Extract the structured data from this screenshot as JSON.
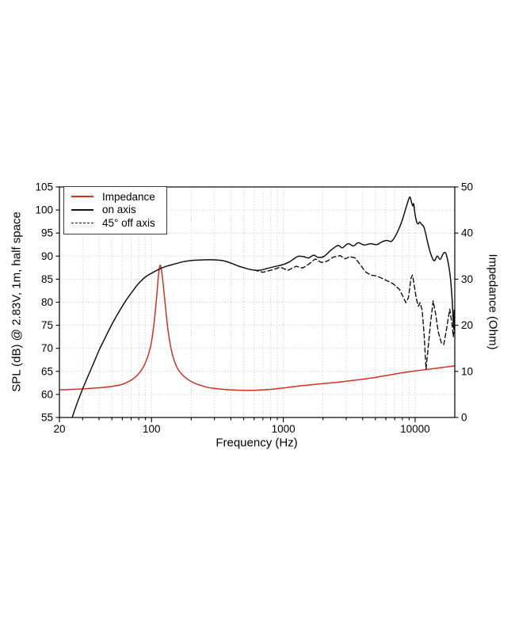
{
  "page": {
    "background": "#ffffff"
  },
  "chart_data": {
    "type": "line",
    "title": "",
    "xlabel": "Frequency (Hz)",
    "ylabel_left": "SPL (dB) @ 2.83V, 1m, half space",
    "ylabel_right": "Impedance (Ohm)",
    "x_scale": "log",
    "xlim": [
      20,
      20000
    ],
    "x_major_ticks": [
      20,
      100,
      1000,
      10000
    ],
    "x_major_labels": [
      "20",
      "100",
      "1000",
      "10000"
    ],
    "ylim_left": [
      55,
      105
    ],
    "y_left_ticks": [
      55,
      60,
      65,
      70,
      75,
      80,
      85,
      90,
      95,
      100,
      105
    ],
    "ylim_right": [
      0,
      50
    ],
    "y_right_ticks": [
      0,
      10,
      20,
      30,
      40,
      50
    ],
    "grid": true,
    "grid_color": "#c4c4c4",
    "frame_color": "#000000",
    "legend_position": "upper-left",
    "series": [
      {
        "name": "Impedance",
        "axis": "right",
        "unit": "Ohm",
        "color": "#d62f22",
        "style": "solid",
        "smooth": true,
        "points": [
          [
            20,
            6.0
          ],
          [
            25,
            6.1
          ],
          [
            32,
            6.25
          ],
          [
            40,
            6.45
          ],
          [
            50,
            6.75
          ],
          [
            60,
            7.2
          ],
          [
            70,
            8.1
          ],
          [
            80,
            9.5
          ],
          [
            88,
            11.3
          ],
          [
            95,
            13.8
          ],
          [
            100,
            16.5
          ],
          [
            105,
            21.0
          ],
          [
            110,
            27.0
          ],
          [
            113,
            31.0
          ],
          [
            116,
            33.0
          ],
          [
            119,
            32.0
          ],
          [
            123,
            28.5
          ],
          [
            128,
            23.5
          ],
          [
            134,
            18.5
          ],
          [
            141,
            14.8
          ],
          [
            150,
            12.0
          ],
          [
            160,
            10.3
          ],
          [
            175,
            9.0
          ],
          [
            190,
            8.2
          ],
          [
            210,
            7.5
          ],
          [
            240,
            6.9
          ],
          [
            270,
            6.5
          ],
          [
            300,
            6.3
          ],
          [
            350,
            6.1
          ],
          [
            400,
            6.0
          ],
          [
            500,
            5.9
          ],
          [
            600,
            5.9
          ],
          [
            700,
            6.0
          ],
          [
            800,
            6.1
          ],
          [
            1000,
            6.4
          ],
          [
            1200,
            6.7
          ],
          [
            1400,
            6.9
          ],
          [
            1700,
            7.15
          ],
          [
            2000,
            7.35
          ],
          [
            2500,
            7.6
          ],
          [
            3000,
            7.85
          ],
          [
            4000,
            8.3
          ],
          [
            5000,
            8.7
          ],
          [
            6300,
            9.2
          ],
          [
            8000,
            9.7
          ],
          [
            10000,
            10.1
          ],
          [
            13000,
            10.5
          ],
          [
            16000,
            10.85
          ],
          [
            20000,
            11.2
          ]
        ]
      },
      {
        "name": "on axis",
        "axis": "left",
        "unit": "dB SPL",
        "color": "#111111",
        "style": "solid",
        "smooth": true,
        "points": [
          [
            25,
            55.0
          ],
          [
            27,
            57.8
          ],
          [
            30,
            61.2
          ],
          [
            33,
            64.0
          ],
          [
            36.5,
            66.9
          ],
          [
            40,
            69.6
          ],
          [
            45,
            72.6
          ],
          [
            50,
            75.2
          ],
          [
            56,
            77.7
          ],
          [
            63,
            80.1
          ],
          [
            71,
            82.2
          ],
          [
            80,
            84.1
          ],
          [
            90,
            85.5
          ],
          [
            100,
            86.3
          ],
          [
            115,
            87.2
          ],
          [
            130,
            87.8
          ],
          [
            150,
            88.3
          ],
          [
            175,
            88.8
          ],
          [
            210,
            89.1
          ],
          [
            250,
            89.2
          ],
          [
            300,
            89.2
          ],
          [
            350,
            89.0
          ],
          [
            400,
            88.5
          ],
          [
            450,
            87.9
          ],
          [
            500,
            87.5
          ],
          [
            560,
            87.1
          ],
          [
            650,
            86.9
          ],
          [
            750,
            87.3
          ],
          [
            850,
            87.7
          ],
          [
            980,
            88.1
          ],
          [
            1120,
            88.8
          ],
          [
            1280,
            89.9
          ],
          [
            1420,
            89.9
          ],
          [
            1550,
            89.6
          ],
          [
            1700,
            90.2
          ],
          [
            1850,
            89.7
          ],
          [
            2050,
            90.0
          ],
          [
            2300,
            91.3
          ],
          [
            2600,
            92.3
          ],
          [
            2800,
            91.8
          ],
          [
            3100,
            92.7
          ],
          [
            3400,
            92.2
          ],
          [
            3700,
            92.9
          ],
          [
            4100,
            92.4
          ],
          [
            4600,
            92.7
          ],
          [
            5100,
            92.5
          ],
          [
            5600,
            93.1
          ],
          [
            6100,
            93.4
          ],
          [
            6600,
            93.2
          ],
          [
            7100,
            94.4
          ],
          [
            7900,
            97.4
          ],
          [
            8600,
            100.8
          ],
          [
            9100,
            102.8
          ],
          [
            9400,
            101.6
          ],
          [
            9600,
            100.9
          ],
          [
            9750,
            101.3
          ],
          [
            10000,
            99.0
          ],
          [
            10300,
            97.3
          ],
          [
            10600,
            97.0
          ],
          [
            10800,
            97.4
          ],
          [
            11200,
            96.9
          ],
          [
            11700,
            96.2
          ],
          [
            12400,
            93.2
          ],
          [
            13000,
            90.9
          ],
          [
            13900,
            89.0
          ],
          [
            14700,
            90.0
          ],
          [
            15500,
            89.3
          ],
          [
            16500,
            90.7
          ],
          [
            17300,
            90.2
          ],
          [
            18400,
            86.0
          ],
          [
            19100,
            80.5
          ],
          [
            19600,
            74.5
          ],
          [
            19800,
            78.3
          ],
          [
            20000,
            73.2
          ]
        ]
      },
      {
        "name": "45° off axis",
        "axis": "left",
        "unit": "dB SPL",
        "color": "#111111",
        "style": "dashed",
        "smooth": false,
        "points": [
          [
            600,
            87.0
          ],
          [
            700,
            86.5
          ],
          [
            820,
            87.0
          ],
          [
            950,
            87.6
          ],
          [
            1080,
            86.9
          ],
          [
            1250,
            87.8
          ],
          [
            1400,
            87.4
          ],
          [
            1550,
            88.2
          ],
          [
            1750,
            89.4
          ],
          [
            1950,
            88.6
          ],
          [
            2150,
            88.9
          ],
          [
            2400,
            89.8
          ],
          [
            2700,
            90.1
          ],
          [
            2950,
            89.4
          ],
          [
            3200,
            89.9
          ],
          [
            3500,
            89.6
          ],
          [
            3800,
            88.3
          ],
          [
            4200,
            86.6
          ],
          [
            4600,
            85.9
          ],
          [
            5100,
            85.7
          ],
          [
            5900,
            84.9
          ],
          [
            6800,
            84.0
          ],
          [
            7600,
            82.8
          ],
          [
            8100,
            81.2
          ],
          [
            8500,
            79.9
          ],
          [
            8900,
            81.0
          ],
          [
            9300,
            85.2
          ],
          [
            9550,
            85.9
          ],
          [
            9800,
            84.0
          ],
          [
            10200,
            80.8
          ],
          [
            10600,
            79.1
          ],
          [
            10900,
            79.9
          ],
          [
            11300,
            78.3
          ],
          [
            11700,
            73.0
          ],
          [
            12100,
            65.5
          ],
          [
            12500,
            69.5
          ],
          [
            13100,
            75.5
          ],
          [
            13700,
            80.3
          ],
          [
            14300,
            77.5
          ],
          [
            15000,
            73.5
          ],
          [
            15800,
            71.2
          ],
          [
            16500,
            70.8
          ],
          [
            17400,
            74.5
          ],
          [
            18300,
            78.5
          ],
          [
            19100,
            75.0
          ],
          [
            19500,
            72.5
          ],
          [
            20000,
            78.0
          ]
        ]
      }
    ]
  }
}
